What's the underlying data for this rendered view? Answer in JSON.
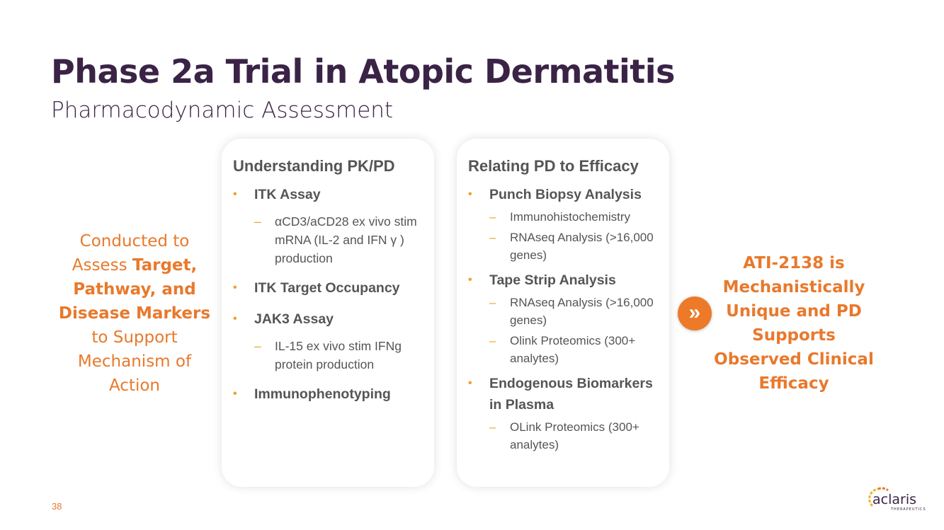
{
  "title": "Phase 2a Trial in Atopic Dermatitis",
  "subtitle": "Pharmacodynamic Assessment",
  "left_text": {
    "p1": "Conducted to Assess ",
    "b1": "Target, Pathway, and Disease Markers",
    "p2": " to Support Mechanism of Action"
  },
  "card1": {
    "heading": "Understanding PK/PD",
    "items": [
      {
        "label": "ITK Assay",
        "subs": [
          "αCD3/aCD28 ex vivo stim mRNA (IL-2 and IFN γ ) production"
        ]
      },
      {
        "label": "ITK Target Occupancy",
        "subs": []
      },
      {
        "label": "JAK3 Assay",
        "subs": [
          "IL-15  ex vivo stim IFNg protein production"
        ]
      },
      {
        "label": "Immunophenotyping",
        "subs": []
      }
    ]
  },
  "card2": {
    "heading": "Relating PD to Efficacy",
    "items": [
      {
        "label": "Punch Biopsy Analysis",
        "subs": [
          "Immunohistochemistry",
          "RNAseq Analysis (>16,000 genes)"
        ]
      },
      {
        "label": "Tape Strip Analysis",
        "subs": [
          "RNAseq Analysis (>16,000 genes)",
          "Olink Proteomics (300+ analytes)"
        ]
      },
      {
        "label": "Endogenous Biomarkers in Plasma",
        "subs": [
          "OLink Proteomics (300+ analytes)"
        ]
      }
    ]
  },
  "conclusion": "ATI-2138 is Mechanistically Unique and PD Supports Observed Clinical Efficacy",
  "arrow_icon": "double-chevron-right-icon",
  "page_number": "38",
  "logo": {
    "name": "aclaris",
    "tagline": "THERAPEUTICS"
  },
  "colors": {
    "title": "#3a2346",
    "accent": "#e8792c",
    "bullet": "#f0a030",
    "text": "#555555"
  }
}
